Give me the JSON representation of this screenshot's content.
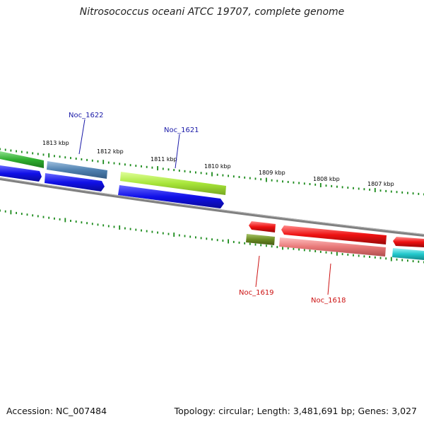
{
  "title": "Nitrosococcus oceani ATCC 19707, complete genome",
  "footer": {
    "accession": "Accession: NC_007484",
    "stats": "Topology: circular; Length: 3,481,691 bp; Genes: 3,027"
  },
  "ticks": [
    "1813 kbp",
    "1812 kbp",
    "1811 kbp",
    "1810 kbp",
    "1809 kbp",
    "1808 kbp",
    "1807 kbp"
  ],
  "gene_labels": {
    "noc1622": "Noc_1622",
    "noc1621": "Noc_1621",
    "noc1619": "Noc_1619",
    "noc1618": "Noc_1618"
  },
  "colors": {
    "backbone": "#7a7a7a",
    "tick": "#1a8a1a",
    "forward_label": "#1a1aa8",
    "reverse_label": "#cc1111",
    "green": "#33b233",
    "steelblue": "#4f81b0",
    "blue": "#1010e8",
    "yellowgreen": "#a8e63a",
    "red": "#ee1111",
    "olive": "#6a8a22",
    "salmon": "#e87878",
    "cyan": "#22c8cc"
  }
}
